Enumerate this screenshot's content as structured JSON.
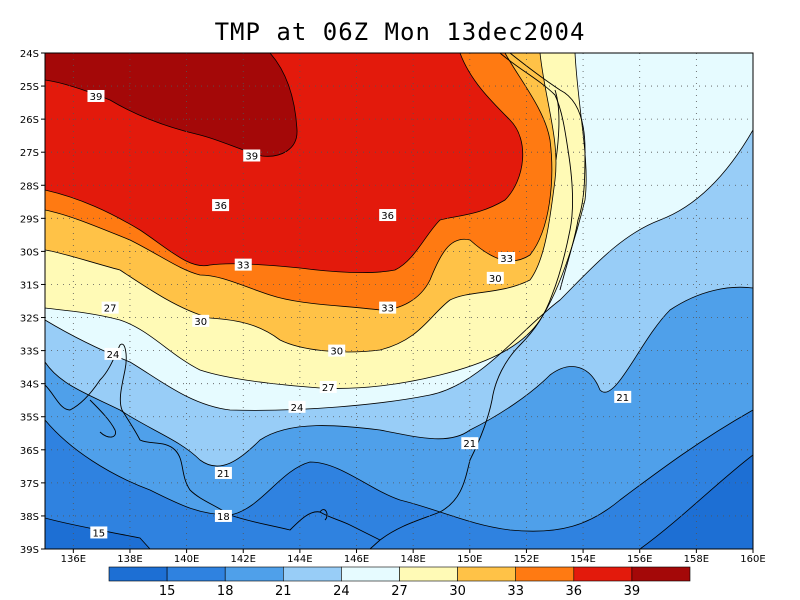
{
  "title": "TMP at 06Z Mon 13dec2004",
  "colors": {
    "c15": "#1d6fd4",
    "c18": "#2f82e0",
    "c21": "#4fa0ea",
    "c24": "#98cdf7",
    "c27": "#e6fbff",
    "c30": "#fffab6",
    "c33": "#ffc247",
    "c36": "#ff7a12",
    "c39": "#e31a0c",
    "c42": "#a40808"
  },
  "map": {
    "lat_labels": [
      "24S",
      "25S",
      "26S",
      "27S",
      "28S",
      "29S",
      "30S",
      "31S",
      "32S",
      "33S",
      "34S",
      "35S",
      "36S",
      "37S",
      "38S",
      "39S"
    ],
    "lon_labels": [
      "136E",
      "138E",
      "140E",
      "142E",
      "144E",
      "146E",
      "148E",
      "150E",
      "152E",
      "154E",
      "156E",
      "158E",
      "160E"
    ],
    "contour_labels": [
      {
        "text": "39",
        "lon": 136.8,
        "lat": -25.3
      },
      {
        "text": "39",
        "lon": 142.3,
        "lat": -27.1
      },
      {
        "text": "36",
        "lon": 141.2,
        "lat": -28.6
      },
      {
        "text": "36",
        "lon": 147.1,
        "lat": -28.9
      },
      {
        "text": "33",
        "lon": 142.0,
        "lat": -30.4
      },
      {
        "text": "33",
        "lon": 147.1,
        "lat": -31.7
      },
      {
        "text": "33",
        "lon": 151.3,
        "lat": -30.2
      },
      {
        "text": "30",
        "lon": 150.9,
        "lat": -30.8
      },
      {
        "text": "30",
        "lon": 140.5,
        "lat": -32.1
      },
      {
        "text": "30",
        "lon": 145.3,
        "lat": -33.0
      },
      {
        "text": "27",
        "lon": 137.3,
        "lat": -31.7
      },
      {
        "text": "27",
        "lon": 145.0,
        "lat": -34.1
      },
      {
        "text": "24",
        "lon": 137.4,
        "lat": -33.1
      },
      {
        "text": "24",
        "lon": 143.9,
        "lat": -34.7
      },
      {
        "text": "21",
        "lon": 150.0,
        "lat": -35.8
      },
      {
        "text": "21",
        "lon": 155.4,
        "lat": -34.4
      },
      {
        "text": "21",
        "lon": 141.3,
        "lat": -36.7
      },
      {
        "text": "18",
        "lon": 141.3,
        "lat": -38.0
      },
      {
        "text": "15",
        "lon": 136.9,
        "lat": -38.5
      }
    ]
  },
  "colorbar": {
    "labels": [
      "15",
      "18",
      "21",
      "24",
      "27",
      "30",
      "33",
      "36",
      "39"
    ]
  }
}
